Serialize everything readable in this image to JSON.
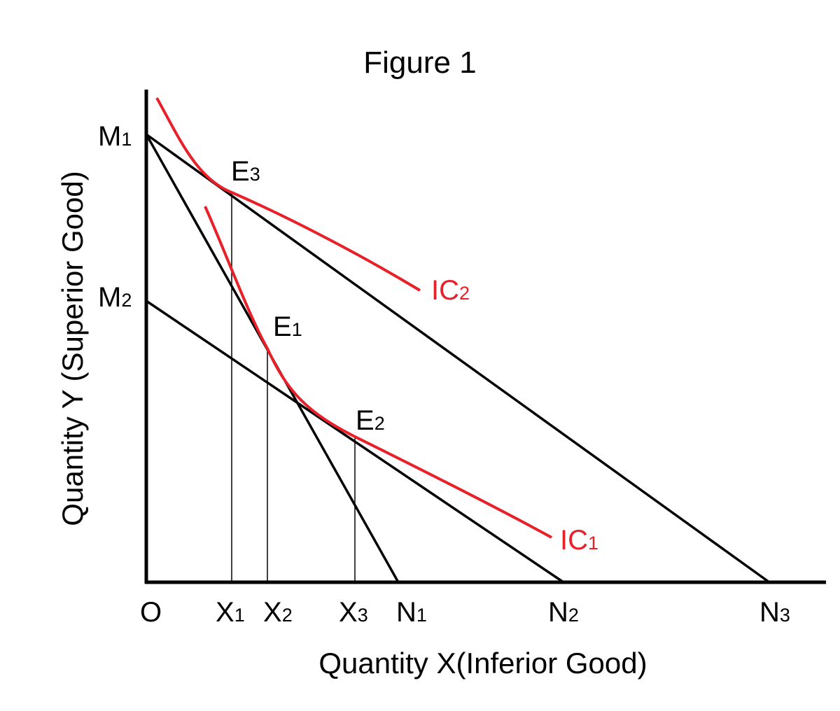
{
  "title": "Figure 1",
  "axes": {
    "x_label": "Quantity X(Inferior Good)",
    "y_label": "Quantity Y (Superior Good)",
    "origin_label": "O"
  },
  "y_intercepts": [
    {
      "base": "M",
      "sub": "1"
    },
    {
      "base": "M",
      "sub": "2"
    }
  ],
  "x_ticks": [
    {
      "base": "X",
      "sub": "1"
    },
    {
      "base": "X",
      "sub": "2"
    },
    {
      "base": "X",
      "sub": "3"
    },
    {
      "base": "N",
      "sub": "1"
    },
    {
      "base": "N",
      "sub": "2"
    },
    {
      "base": "N",
      "sub": "3"
    }
  ],
  "equilibria": [
    {
      "base": "E",
      "sub": "1"
    },
    {
      "base": "E",
      "sub": "2"
    },
    {
      "base": "E",
      "sub": "3"
    }
  ],
  "curves": [
    {
      "base": "IC",
      "sub": "1"
    },
    {
      "base": "IC",
      "sub": "2"
    }
  ],
  "budget_lines": [
    {
      "from": "M1",
      "to": "N1"
    },
    {
      "from": "M2",
      "to": "N2"
    },
    {
      "from": "M1",
      "to": "N3"
    }
  ],
  "colors": {
    "axes": "#000000",
    "budget_lines": "#000000",
    "indifference_curves": "#e8202a"
  }
}
